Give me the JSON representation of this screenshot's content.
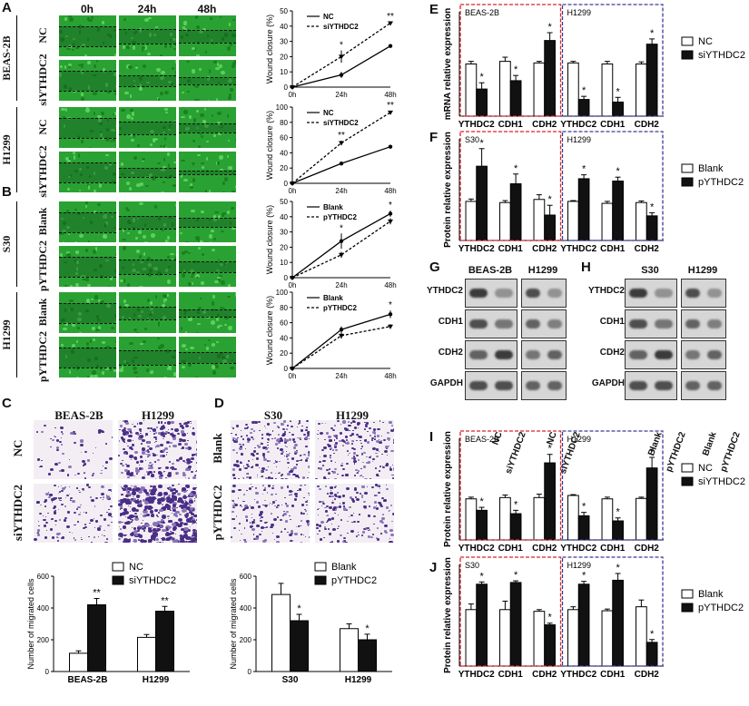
{
  "panels": {
    "A": "A",
    "B": "B",
    "C": "C",
    "D": "D",
    "E": "E",
    "F": "F",
    "G": "G",
    "H": "H",
    "I": "I",
    "J": "J"
  },
  "time_labels": [
    "0h",
    "24h",
    "48h"
  ],
  "wound_rows": {
    "A": {
      "cells": [
        [
          "BEAS-2B",
          "NC"
        ],
        [
          "BEAS-2B",
          "siYTHDC2"
        ],
        [
          "H1299",
          "NC"
        ],
        [
          "H1299",
          "siYTHDC2"
        ]
      ]
    },
    "B": {
      "cells": [
        [
          "S30",
          "Blank"
        ],
        [
          "S30",
          "pYTHDC2"
        ],
        [
          "H1299",
          "Blank"
        ],
        [
          "H1299",
          "pYTHDC2"
        ]
      ]
    }
  },
  "transwell": {
    "C": {
      "cols": [
        "BEAS-2B",
        "H1299"
      ],
      "rows": [
        "NC",
        "siYTHDC2"
      ]
    },
    "D": {
      "cols": [
        "S30",
        "H1299"
      ],
      "rows": [
        "Blank",
        "pYTHDC2"
      ]
    }
  },
  "blots": {
    "G": {
      "headers": [
        "BEAS-2B",
        "H1299"
      ],
      "proteins": [
        "YTHDC2",
        "CDH1",
        "CDH2",
        "GAPDH"
      ],
      "lanes": [
        "NC",
        "siYTHDC2",
        "NC",
        "siYTHDC2"
      ]
    },
    "H": {
      "headers": [
        "S30",
        "H1299"
      ],
      "proteins": [
        "YTHDC2",
        "CDH1",
        "CDH2",
        "GAPDH"
      ],
      "lanes": [
        "Blank",
        "pYTHDC2",
        "Blank",
        "pYTHDC2"
      ]
    }
  },
  "colors": {
    "red_box": "#d9232d",
    "blue_box": "#3a3a9a",
    "wound_green": "#2fa83a",
    "stain_purple": "#5a3f8e"
  },
  "chart_data": [
    {
      "id": "A1",
      "type": "line",
      "x": [
        "0h",
        "24h",
        "48h"
      ],
      "ylabel": "Wound closure (%)",
      "ylim": [
        0,
        50
      ],
      "yticks": [
        0,
        10,
        20,
        30,
        40,
        50
      ],
      "series": [
        {
          "name": "NC",
          "values": [
            0,
            8,
            27
          ],
          "err": [
            0,
            2,
            1
          ],
          "style": "solid"
        },
        {
          "name": "siYTHDC2",
          "values": [
            0,
            20,
            42
          ],
          "err": [
            0,
            4,
            1
          ],
          "style": "dashed"
        }
      ],
      "annotations": [
        {
          "x": 1,
          "text": "*"
        },
        {
          "x": 2,
          "text": "**"
        }
      ]
    },
    {
      "id": "A2",
      "type": "line",
      "x": [
        "0h",
        "24h",
        "48h"
      ],
      "ylabel": "Wound closure (%)",
      "ylim": [
        0,
        100
      ],
      "yticks": [
        0,
        20,
        40,
        60,
        80,
        100
      ],
      "series": [
        {
          "name": "NC",
          "values": [
            0,
            26,
            48
          ],
          "err": [
            0,
            2,
            1
          ],
          "style": "solid"
        },
        {
          "name": "siYTHDC2",
          "values": [
            0,
            53,
            93
          ],
          "err": [
            0,
            3,
            2
          ],
          "style": "dashed"
        }
      ],
      "annotations": [
        {
          "x": 1,
          "text": "**"
        },
        {
          "x": 2,
          "text": "**"
        }
      ]
    },
    {
      "id": "B1",
      "type": "line",
      "x": [
        "0h",
        "24h",
        "48h"
      ],
      "ylabel": "Wound closure (%)",
      "ylim": [
        0,
        50
      ],
      "yticks": [
        0,
        10,
        20,
        30,
        40,
        50
      ],
      "series": [
        {
          "name": "Blank",
          "values": [
            0,
            24,
            42
          ],
          "err": [
            0,
            5,
            2
          ],
          "style": "solid"
        },
        {
          "name": "pYTHDC2",
          "values": [
            0,
            15,
            37
          ],
          "err": [
            0,
            2,
            2
          ],
          "style": "dashed"
        }
      ],
      "annotations": [
        {
          "x": 1,
          "text": "*"
        },
        {
          "x": 2,
          "text": "*"
        }
      ]
    },
    {
      "id": "B2",
      "type": "line",
      "x": [
        "0h",
        "24h",
        "48h"
      ],
      "ylabel": "Wound closure (%)",
      "ylim": [
        0,
        100
      ],
      "yticks": [
        0,
        20,
        40,
        60,
        80,
        100
      ],
      "series": [
        {
          "name": "Blank",
          "values": [
            0,
            51,
            71
          ],
          "err": [
            0,
            4,
            5
          ],
          "style": "solid"
        },
        {
          "name": "pYTHDC2",
          "values": [
            0,
            43,
            55
          ],
          "err": [
            0,
            4,
            3
          ],
          "style": "dashed"
        }
      ],
      "annotations": [
        {
          "x": 2,
          "text": "*"
        }
      ]
    },
    {
      "id": "C",
      "type": "bar",
      "categories": [
        "BEAS-2B",
        "H1299"
      ],
      "ylabel": "Number of migrated cells",
      "ylim": [
        0,
        600
      ],
      "yticks": [
        0,
        200,
        400,
        600
      ],
      "series": [
        {
          "name": "NC",
          "values": [
            115,
            215
          ],
          "err": [
            15,
            18
          ]
        },
        {
          "name": "siYTHDC2",
          "values": [
            420,
            380
          ],
          "err": [
            40,
            30
          ]
        }
      ],
      "annotations": [
        {
          "cat": 0,
          "series": 1,
          "text": "**"
        },
        {
          "cat": 1,
          "series": 1,
          "text": "**"
        }
      ]
    },
    {
      "id": "D",
      "type": "bar",
      "categories": [
        "S30",
        "H1299"
      ],
      "ylabel": "Number of migrated cells",
      "ylim": [
        0,
        600
      ],
      "yticks": [
        0,
        200,
        400,
        600
      ],
      "series": [
        {
          "name": "Blank",
          "values": [
            485,
            270
          ],
          "err": [
            70,
            30
          ]
        },
        {
          "name": "pYTHDC2",
          "values": [
            320,
            200
          ],
          "err": [
            40,
            35
          ]
        }
      ],
      "annotations": [
        {
          "cat": 0,
          "series": 1,
          "text": "*"
        },
        {
          "cat": 1,
          "series": 1,
          "text": "*"
        }
      ]
    },
    {
      "id": "E",
      "type": "bar",
      "categories": [
        "YTHDC2",
        "CDH1",
        "CDH2",
        "YTHDC2",
        "CDH1",
        "CDH2"
      ],
      "group_labels": [
        "BEAS-2B",
        "H1299"
      ],
      "ylabel": "mRNA relative expression",
      "ylim": [
        0,
        2.0
      ],
      "series": [
        {
          "name": "NC",
          "values": [
            1.0,
            1.05,
            1.02,
            1.02,
            1.0,
            1.0
          ],
          "err": [
            0.05,
            0.08,
            0.03,
            0.03,
            0.05,
            0.04
          ]
        },
        {
          "name": "siYTHDC2",
          "values": [
            0.52,
            0.68,
            1.45,
            0.32,
            0.27,
            1.38
          ],
          "err": [
            0.12,
            0.1,
            0.15,
            0.06,
            0.09,
            0.1
          ]
        }
      ],
      "annotations": [
        {
          "cat": 0,
          "series": 1,
          "text": "*"
        },
        {
          "cat": 1,
          "series": 1,
          "text": "*"
        },
        {
          "cat": 2,
          "series": 1,
          "text": "*"
        },
        {
          "cat": 3,
          "series": 1,
          "text": "*"
        },
        {
          "cat": 4,
          "series": 1,
          "text": "*"
        },
        {
          "cat": 5,
          "series": 1,
          "text": "*"
        }
      ]
    },
    {
      "id": "F",
      "type": "bar",
      "categories": [
        "YTHDC2",
        "CDH1",
        "CDH2",
        "YTHDC2",
        "CDH1",
        "CDH2"
      ],
      "group_labels": [
        "S30",
        "H1299"
      ],
      "ylabel": "Protein relative expression",
      "ylim": [
        0,
        2.6
      ],
      "series": [
        {
          "name": "Blank",
          "values": [
            1.0,
            0.97,
            1.05,
            1.0,
            0.95,
            0.97
          ],
          "err": [
            0.06,
            0.05,
            0.12,
            0.02,
            0.05,
            0.04
          ]
        },
        {
          "name": "pYTHDC2",
          "values": [
            1.9,
            1.45,
            0.65,
            1.58,
            1.52,
            0.63
          ],
          "err": [
            0.45,
            0.25,
            0.25,
            0.1,
            0.1,
            0.08
          ]
        }
      ],
      "annotations": [
        {
          "cat": 0,
          "series": 1,
          "text": "*"
        },
        {
          "cat": 1,
          "series": 1,
          "text": "*"
        },
        {
          "cat": 2,
          "series": 1,
          "text": "*"
        },
        {
          "cat": 3,
          "series": 1,
          "text": "*"
        },
        {
          "cat": 4,
          "series": 1,
          "text": "*"
        },
        {
          "cat": 5,
          "series": 1,
          "text": "*"
        }
      ]
    },
    {
      "id": "I",
      "type": "bar",
      "categories": [
        "YTHDC2",
        "CDH1",
        "CDH2",
        "YTHDC2",
        "CDH1",
        "CDH2"
      ],
      "group_labels": [
        "BEAS-2B",
        "H1299"
      ],
      "ylabel": "Protein relative expression",
      "ylim": [
        0,
        2.4
      ],
      "series": [
        {
          "name": "NC",
          "values": [
            0.97,
            1.0,
            1.0,
            1.05,
            0.97,
            0.98
          ],
          "err": [
            0.04,
            0.06,
            0.08,
            0.02,
            0.04,
            0.03
          ]
        },
        {
          "name": "siYTHDC2",
          "values": [
            0.7,
            0.62,
            1.82,
            0.57,
            0.45,
            1.7
          ],
          "err": [
            0.07,
            0.08,
            0.2,
            0.08,
            0.07,
            0.25
          ]
        }
      ],
      "annotations": [
        {
          "cat": 0,
          "series": 1,
          "text": "*"
        },
        {
          "cat": 1,
          "series": 1,
          "text": "*"
        },
        {
          "cat": 2,
          "series": 1,
          "text": "*"
        },
        {
          "cat": 3,
          "series": 1,
          "text": "*"
        },
        {
          "cat": 4,
          "series": 1,
          "text": "*"
        },
        {
          "cat": 5,
          "series": 1,
          "text": "*"
        }
      ]
    },
    {
      "id": "J",
      "type": "bar",
      "categories": [
        "YTHDC2",
        "CDH1",
        "CDH2",
        "YTHDC2",
        "CDH1",
        "CDH2"
      ],
      "group_labels": [
        "S30",
        "H1299"
      ],
      "ylabel": "Protein relative expression",
      "ylim": [
        0,
        1.8
      ],
      "series": [
        {
          "name": "Blank",
          "values": [
            1.0,
            1.0,
            0.97,
            1.0,
            0.98,
            1.05
          ],
          "err": [
            0.1,
            0.15,
            0.03,
            0.05,
            0.03,
            0.12
          ]
        },
        {
          "name": "pYTHDC2",
          "values": [
            1.45,
            1.48,
            0.73,
            1.45,
            1.52,
            0.42
          ],
          "err": [
            0.04,
            0.03,
            0.03,
            0.05,
            0.12,
            0.05
          ]
        }
      ],
      "annotations": [
        {
          "cat": 0,
          "series": 1,
          "text": "*"
        },
        {
          "cat": 1,
          "series": 1,
          "text": "*"
        },
        {
          "cat": 2,
          "series": 1,
          "text": "*"
        },
        {
          "cat": 3,
          "series": 1,
          "text": "*"
        },
        {
          "cat": 4,
          "series": 1,
          "text": "*"
        },
        {
          "cat": 5,
          "series": 1,
          "text": "*"
        }
      ]
    }
  ]
}
